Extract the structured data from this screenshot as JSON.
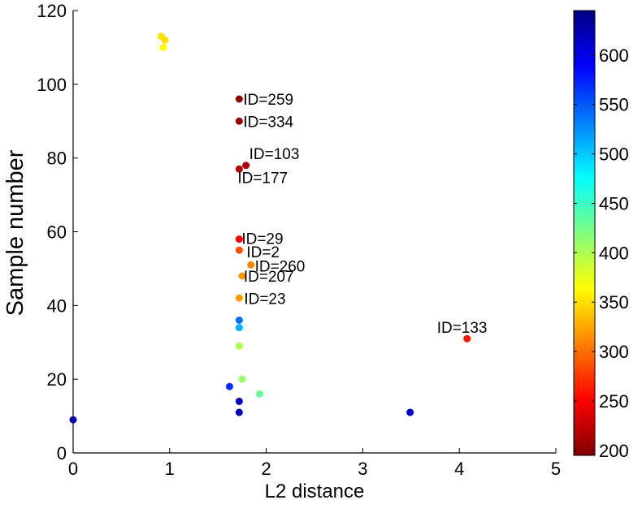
{
  "chart_data": {
    "type": "scatter",
    "title": "",
    "xlabel": "L2 distance",
    "ylabel": "Sample number",
    "xlim": [
      0,
      5
    ],
    "ylim": [
      0,
      120
    ],
    "xticks": [
      "0",
      "1",
      "2",
      "3",
      "4",
      "5"
    ],
    "yticks": [
      "0",
      "20",
      "40",
      "60",
      "80",
      "100",
      "120"
    ],
    "colorbar": {
      "colormap": "jet",
      "range": [
        195,
        645
      ],
      "ticks": [
        "200",
        "250",
        "300",
        "350",
        "400",
        "450",
        "500",
        "550",
        "600"
      ]
    },
    "points": [
      {
        "x": 0.0,
        "y": 9,
        "c": 625,
        "label": ""
      },
      {
        "x": 0.91,
        "y": 113,
        "c": 352,
        "label": ""
      },
      {
        "x": 0.95,
        "y": 112,
        "c": 350,
        "label": ""
      },
      {
        "x": 0.93,
        "y": 110,
        "c": 362,
        "label": ""
      },
      {
        "x": 1.72,
        "y": 96,
        "c": 200,
        "label": "ID=259"
      },
      {
        "x": 1.72,
        "y": 90,
        "c": 205,
        "label": "ID=334"
      },
      {
        "x": 1.79,
        "y": 78,
        "c": 215,
        "label": "ID=103"
      },
      {
        "x": 1.72,
        "y": 77,
        "c": 220,
        "label": "ID=177"
      },
      {
        "x": 1.72,
        "y": 58,
        "c": 250,
        "label": "ID=29"
      },
      {
        "x": 1.72,
        "y": 55,
        "c": 285,
        "label": "ID=2"
      },
      {
        "x": 1.84,
        "y": 51,
        "c": 310,
        "label": "ID=260"
      },
      {
        "x": 1.75,
        "y": 48,
        "c": 318,
        "label": "ID=207"
      },
      {
        "x": 1.72,
        "y": 42,
        "c": 320,
        "label": "ID=23"
      },
      {
        "x": 1.72,
        "y": 36,
        "c": 540,
        "label": ""
      },
      {
        "x": 1.72,
        "y": 34,
        "c": 510,
        "label": ""
      },
      {
        "x": 1.72,
        "y": 29,
        "c": 400,
        "label": ""
      },
      {
        "x": 1.75,
        "y": 20,
        "c": 410,
        "label": ""
      },
      {
        "x": 1.93,
        "y": 16,
        "c": 430,
        "label": ""
      },
      {
        "x": 1.62,
        "y": 18,
        "c": 570,
        "label": ""
      },
      {
        "x": 1.72,
        "y": 14,
        "c": 615,
        "label": ""
      },
      {
        "x": 1.72,
        "y": 11,
        "c": 620,
        "label": ""
      },
      {
        "x": 3.49,
        "y": 11,
        "c": 610,
        "label": ""
      },
      {
        "x": 4.08,
        "y": 31,
        "c": 260,
        "label": "ID=133"
      }
    ]
  }
}
